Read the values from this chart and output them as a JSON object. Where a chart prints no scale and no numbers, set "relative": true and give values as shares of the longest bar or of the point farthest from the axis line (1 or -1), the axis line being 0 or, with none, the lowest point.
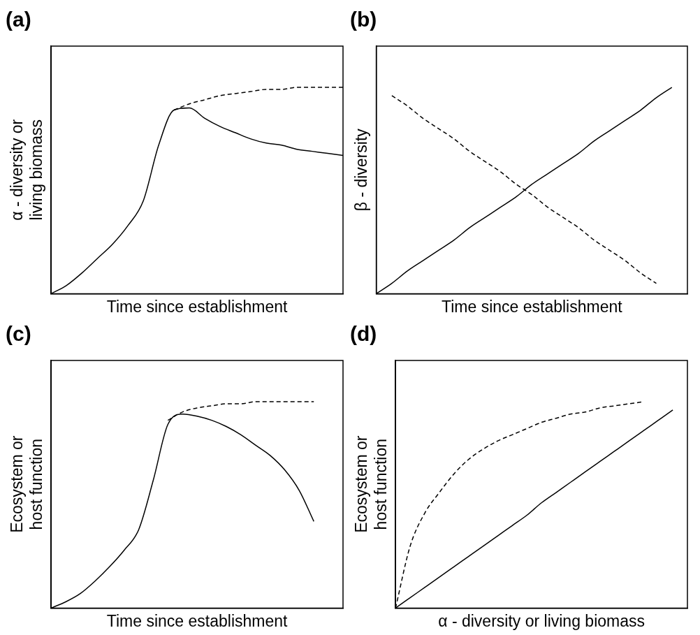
{
  "chart_data": [
    {
      "type": "line",
      "title": "(a)",
      "xlabel": "Time since establishment",
      "ylabel": "α - diversity or living biomass",
      "relative": true,
      "grid": false,
      "legend": false,
      "categories": [
        null,
        null,
        null,
        null,
        null,
        null,
        null,
        null,
        null,
        null,
        null,
        null,
        null,
        null,
        null,
        null,
        null,
        null,
        null,
        null
      ],
      "series": [
        {
          "color": "#000000",
          "line_style": "solid",
          "values": [
            0,
            0.04,
            0.1,
            0.17,
            0.24,
            0.33,
            0.45,
            0.72,
            0.89,
            0.9,
            0.85,
            0.81,
            0.78,
            0.75,
            0.73,
            0.72,
            0.7,
            0.69,
            0.68,
            0.67
          ]
        },
        {
          "color": "#000000",
          "line_style": "dashed",
          "values": [
            null,
            null,
            null,
            null,
            null,
            null,
            null,
            null,
            0.89,
            0.92,
            0.94,
            0.96,
            0.97,
            0.98,
            0.99,
            0.99,
            1,
            1,
            1,
            1
          ]
        }
      ]
    },
    {
      "type": "line",
      "title": "(b)",
      "xlabel": "Time since establishment",
      "ylabel": "β - diversity",
      "relative": true,
      "grid": false,
      "legend": false,
      "categories": [
        null,
        null,
        null,
        null,
        null,
        null,
        null,
        null,
        null,
        null,
        null,
        null,
        null,
        null,
        null,
        null,
        null,
        null,
        null,
        null,
        null
      ],
      "series": [
        {
          "color": "#000000",
          "line_style": "solid",
          "values": [
            0,
            0.05,
            0.11,
            0.16,
            0.21,
            0.26,
            0.32,
            0.37,
            0.42,
            0.47,
            0.53,
            0.58,
            0.63,
            0.68,
            0.74,
            0.79,
            0.84,
            0.89,
            0.95,
            1,
            null
          ]
        },
        {
          "color": "#000000",
          "line_style": "dashed",
          "values": [
            null,
            0.96,
            0.91,
            0.85,
            0.8,
            0.75,
            0.69,
            0.64,
            0.59,
            0.53,
            0.48,
            0.42,
            0.37,
            0.32,
            0.26,
            0.21,
            0.16,
            0.1,
            0.05,
            null,
            null
          ]
        }
      ]
    },
    {
      "type": "line",
      "title": "(c)",
      "xlabel": "Time since establishment",
      "ylabel": "Ecosystem or host function",
      "relative": true,
      "grid": false,
      "legend": false,
      "categories": [
        null,
        null,
        null,
        null,
        null,
        null,
        null,
        null,
        null,
        null,
        null,
        null,
        null,
        null,
        null,
        null,
        null,
        null,
        null,
        null,
        null
      ],
      "series": [
        {
          "color": "#000000",
          "line_style": "solid",
          "values": [
            0,
            0.03,
            0.07,
            0.13,
            0.2,
            0.28,
            0.38,
            0.62,
            0.89,
            0.94,
            0.93,
            0.91,
            0.88,
            0.84,
            0.79,
            0.74,
            0.67,
            0.57,
            0.42,
            null,
            null
          ]
        },
        {
          "color": "#000000",
          "line_style": "dashed",
          "values": [
            null,
            null,
            null,
            null,
            null,
            null,
            null,
            null,
            0.91,
            0.95,
            0.97,
            0.98,
            0.99,
            0.99,
            1,
            1,
            1,
            1,
            1,
            null,
            null
          ]
        }
      ]
    },
    {
      "type": "line",
      "title": "(d)",
      "xlabel": "α - diversity or living biomass",
      "ylabel": "Ecosystem or host function",
      "relative": true,
      "grid": false,
      "legend": false,
      "categories": [
        null,
        null,
        null,
        null,
        null,
        null,
        null,
        null,
        null,
        null,
        null,
        null,
        null,
        null,
        null,
        null,
        null,
        null,
        null,
        null,
        null
      ],
      "series": [
        {
          "color": "#000000",
          "line_style": "solid",
          "values": [
            0,
            0.05,
            0.1,
            0.15,
            0.2,
            0.25,
            0.3,
            0.35,
            0.4,
            0.45,
            0.51,
            0.56,
            0.61,
            0.66,
            0.71,
            0.76,
            0.81,
            0.86,
            0.91,
            0.96,
            null
          ]
        },
        {
          "color": "#000000",
          "line_style": "dashed",
          "values": [
            0,
            0.3,
            0.46,
            0.56,
            0.65,
            0.72,
            0.77,
            0.81,
            0.84,
            0.87,
            0.9,
            0.92,
            0.94,
            0.95,
            0.97,
            0.98,
            0.99,
            1,
            null,
            null,
            null
          ]
        }
      ]
    }
  ]
}
